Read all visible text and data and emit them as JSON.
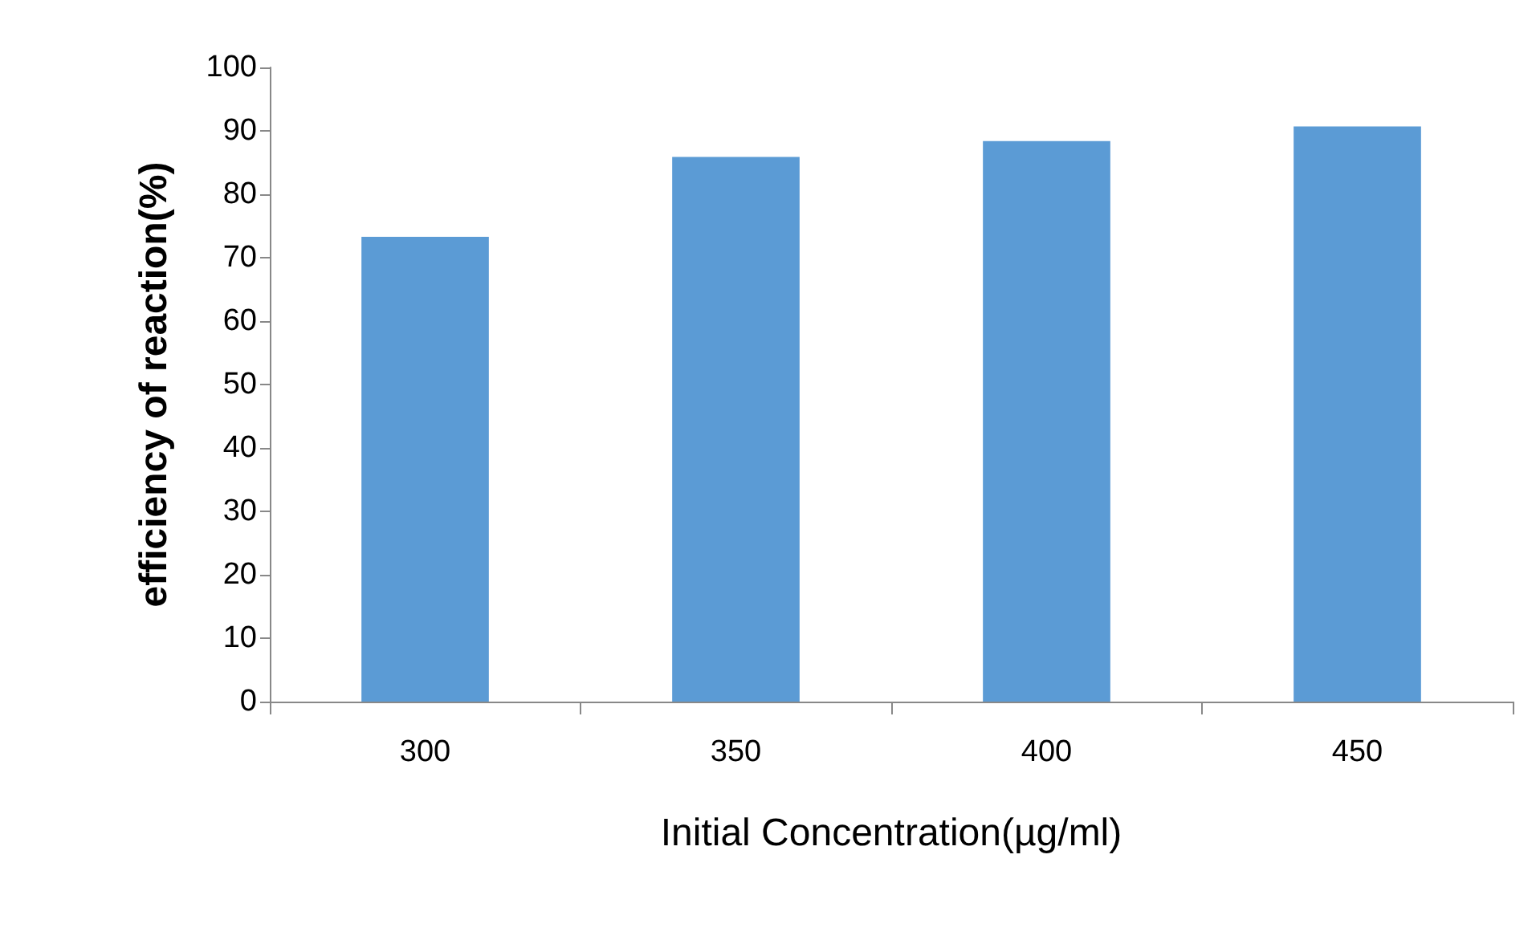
{
  "chart_data": {
    "type": "bar",
    "xlabel": "Initial Concentration(µg/ml)",
    "ylabel": "efficiency of reaction(%)",
    "categories": [
      "300",
      "350",
      "400",
      "450"
    ],
    "values": [
      73.3,
      85.9,
      88.4,
      90.7
    ],
    "color": "#5b9bd5",
    "ylim": [
      0,
      100
    ],
    "yticks": [
      0,
      10,
      20,
      30,
      40,
      50,
      60,
      70,
      80,
      90,
      100
    ],
    "grid": false
  }
}
